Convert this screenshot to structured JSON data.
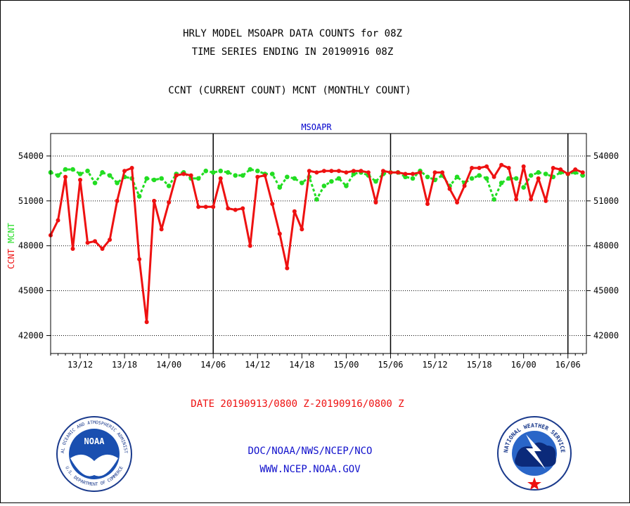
{
  "header": {
    "line1": "HRLY MODEL MSOAPR DATA COUNTS for 08Z",
    "line2": "TIME SERIES ENDING IN 20190916 08Z",
    "line3": "CCNT (CURRENT COUNT) MCNT (MONTHLY COUNT)"
  },
  "footer": {
    "date_range": "DATE 20190913/0800 Z-20190916/0800 Z",
    "org": "DOC/NOAA/NWS/NCEP/NCO",
    "url": "WWW.NCEP.NOAA.GOV"
  },
  "logos": {
    "noaa": {
      "text": "NOAA",
      "ring_top": "NATIONAL OCEANIC AND ATMOSPHERIC ADMINISTRATION",
      "ring_bottom": "U.S. DEPARTMENT OF COMMERCE"
    },
    "nws": {
      "ring_top": "NATIONAL WEATHER SERVICE"
    }
  },
  "colors": {
    "ccnt": "#ee1111",
    "mcnt": "#22dd22",
    "title": "#0000cc",
    "date": "#ee1111",
    "footer_text": "#1111cc"
  },
  "chart_data": {
    "type": "line",
    "title": "MSOAPR",
    "ylabel_ccnt": "CCNT",
    "ylabel_mcnt": "MCNT",
    "ylim": [
      40800,
      55500
    ],
    "yticks": [
      42000,
      45000,
      48000,
      51000,
      54000
    ],
    "ytick_labels": [
      "42000",
      "45000",
      "48000",
      "51000",
      "54000"
    ],
    "xlim": [
      8,
      80.5
    ],
    "xticks": [
      12,
      18,
      24,
      30,
      36,
      42,
      48,
      54,
      60,
      66,
      72,
      78
    ],
    "xtick_labels": [
      "13/12",
      "13/18",
      "14/00",
      "14/06",
      "14/12",
      "14/18",
      "15/00",
      "15/06",
      "15/12",
      "15/18",
      "16/00",
      "16/06"
    ],
    "day_boundaries": [
      30,
      54,
      78
    ],
    "grid": true,
    "series": [
      {
        "name": "CCNT",
        "key": "ccnt",
        "x": [
          8,
          9,
          10,
          11,
          12,
          13,
          14,
          15,
          16,
          17,
          18,
          19,
          20,
          21,
          22,
          23,
          24,
          25,
          26,
          27,
          28,
          29,
          30,
          31,
          32,
          33,
          34,
          35,
          36,
          37,
          38,
          39,
          40,
          41,
          42,
          43,
          44,
          45,
          46,
          47,
          48,
          49,
          50,
          51,
          52,
          53,
          54,
          55,
          56,
          57,
          58,
          59,
          60,
          61,
          62,
          63,
          64,
          65,
          66,
          67,
          68,
          69,
          70,
          71,
          72,
          73,
          74,
          75,
          76,
          77,
          78,
          79,
          80
        ],
        "y": [
          48700,
          49700,
          52600,
          47800,
          52400,
          48200,
          48300,
          47800,
          48400,
          51000,
          53000,
          53200,
          47100,
          42900,
          51000,
          49100,
          50900,
          52700,
          52800,
          52700,
          50600,
          50600,
          50600,
          52500,
          50500,
          50400,
          50500,
          48000,
          52600,
          52700,
          50800,
          48800,
          46500,
          50300,
          49100,
          53000,
          52900,
          53000,
          53000,
          53000,
          52900,
          53000,
          53000,
          52900,
          50900,
          53000,
          52900,
          52900,
          52800,
          52800,
          52900,
          50800,
          52900,
          52900,
          51800,
          50900,
          52000,
          53200,
          53200,
          53300,
          52600,
          53400,
          53200,
          51100,
          53300,
          51100,
          52500,
          51000,
          53200,
          53100,
          52800,
          53100,
          52900
        ]
      },
      {
        "name": "MCNT",
        "key": "mcnt",
        "x": [
          8,
          9,
          10,
          11,
          12,
          13,
          14,
          15,
          16,
          17,
          18,
          19,
          20,
          21,
          22,
          23,
          24,
          25,
          26,
          27,
          28,
          29,
          30,
          31,
          32,
          33,
          34,
          35,
          36,
          37,
          38,
          39,
          40,
          41,
          42,
          43,
          44,
          45,
          46,
          47,
          48,
          49,
          50,
          51,
          52,
          53,
          54,
          55,
          56,
          57,
          58,
          59,
          60,
          61,
          62,
          63,
          64,
          65,
          66,
          67,
          68,
          69,
          70,
          71,
          72,
          73,
          74,
          75,
          76,
          77,
          78,
          79,
          80
        ],
        "y": [
          52900,
          52700,
          53100,
          53100,
          52800,
          53000,
          52200,
          52900,
          52700,
          52200,
          52600,
          52500,
          51300,
          52500,
          52400,
          52500,
          52000,
          52800,
          52900,
          52500,
          52500,
          53000,
          52900,
          53000,
          52900,
          52700,
          52700,
          53100,
          53000,
          52800,
          52800,
          51900,
          52600,
          52500,
          52200,
          52600,
          51100,
          52000,
          52300,
          52500,
          52000,
          52800,
          52900,
          52700,
          52300,
          52800,
          52900,
          52900,
          52600,
          52500,
          53000,
          52600,
          52400,
          52700,
          52000,
          52600,
          52200,
          52500,
          52700,
          52500,
          51100,
          52200,
          52500,
          52500,
          51900,
          52700,
          52900,
          52800,
          52600,
          52900,
          52800,
          52900,
          52700
        ]
      }
    ]
  }
}
